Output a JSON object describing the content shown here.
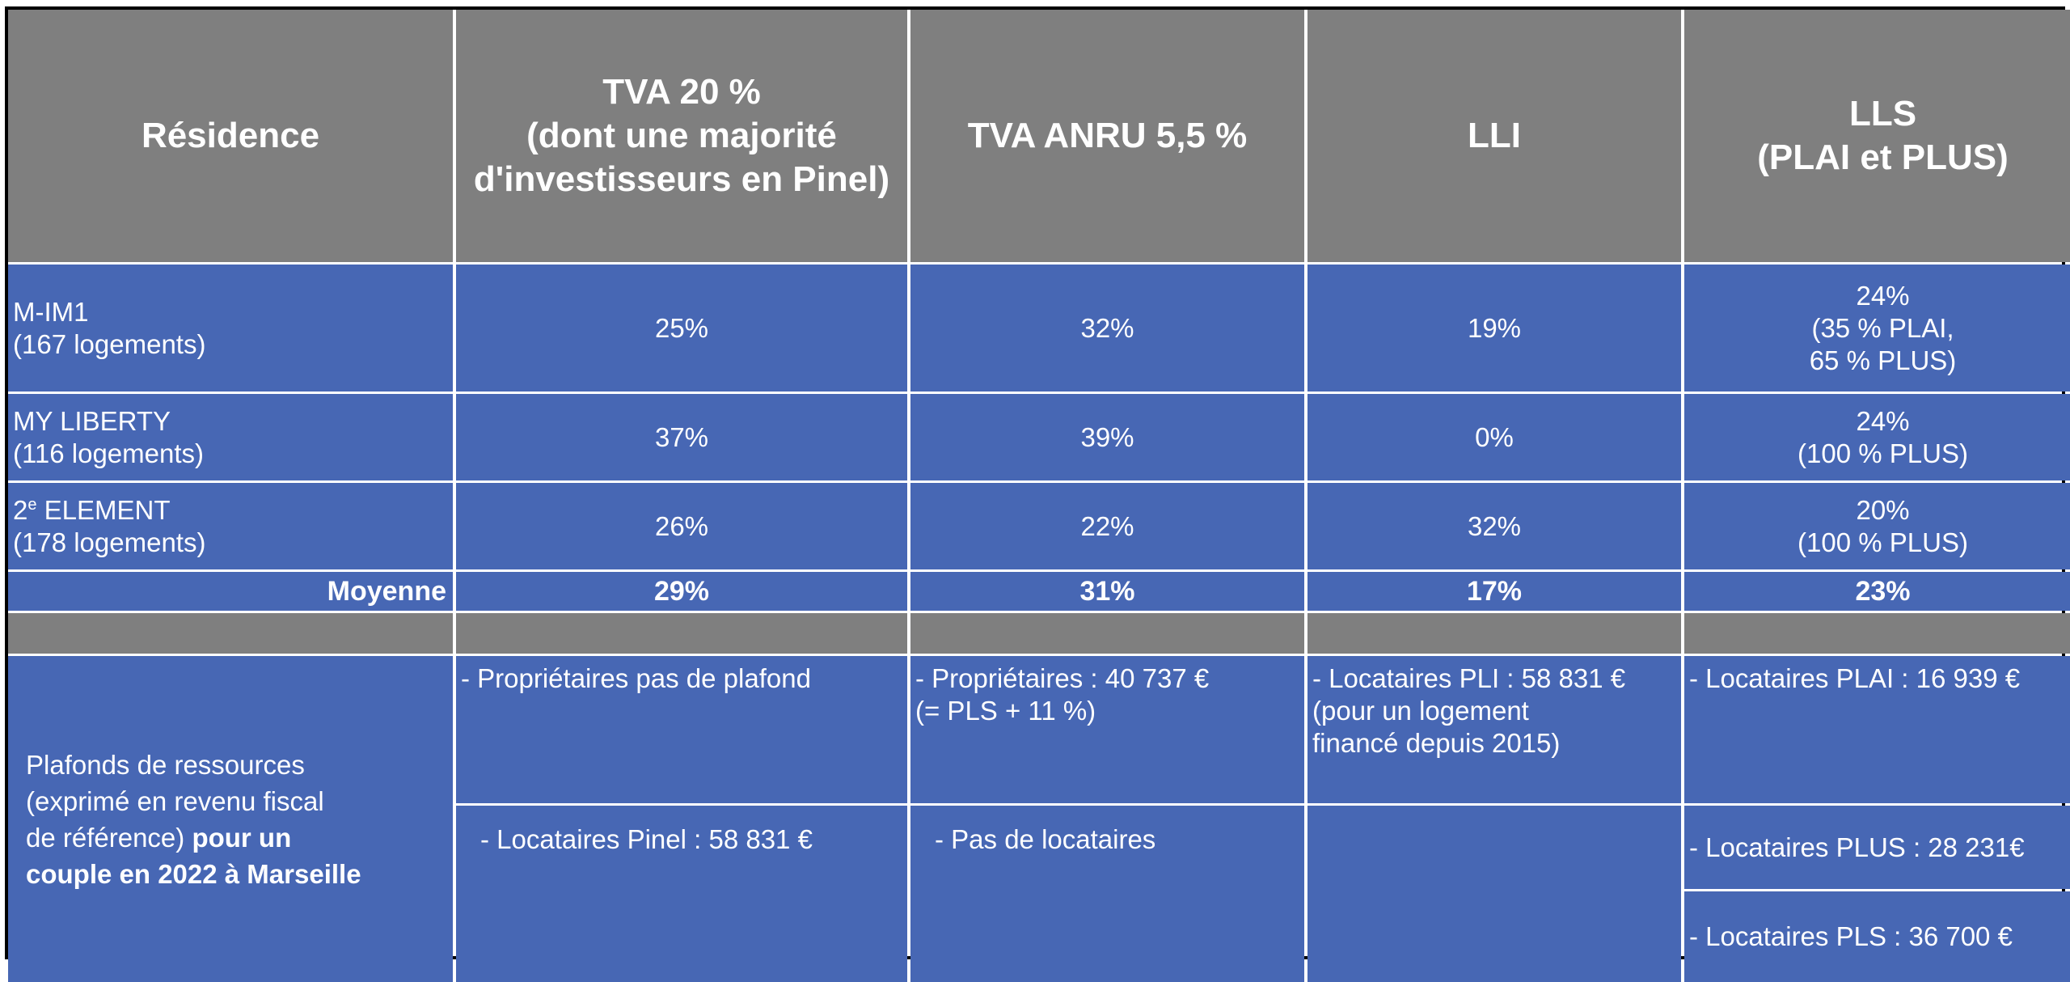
{
  "headers": [
    {
      "lines": [
        "Résidence"
      ]
    },
    {
      "lines": [
        "TVA 20 %",
        "(dont une majorité",
        "d'investisseurs en Pinel)"
      ]
    },
    {
      "lines": [
        "TVA ANRU 5,5 %"
      ]
    },
    {
      "lines": [
        "LLI"
      ]
    },
    {
      "lines": [
        "LLS",
        "(PLAI et PLUS)"
      ]
    }
  ],
  "rows": [
    {
      "name": "M-IM1",
      "count": "(167 logements)",
      "tva20": "25%",
      "anru": "32%",
      "lli": "19%",
      "lls": [
        "24%",
        "(35 % PLAI,",
        "65 % PLUS)"
      ]
    },
    {
      "name": "MY LIBERTY",
      "count": "(116 logements)",
      "tva20": "37%",
      "anru": "39%",
      "lli": "0%",
      "lls": [
        "24%",
        "(100 % PLUS)"
      ]
    },
    {
      "name_prefix": "2",
      "name_sup": "e",
      "name_rest": " ELEMENT",
      "count": "(178 logements)",
      "tva20": "26%",
      "anru": "22%",
      "lli": "32%",
      "lls": [
        "20%",
        "(100 % PLUS)"
      ]
    }
  ],
  "average": {
    "label": "Moyenne",
    "tva20": "29%",
    "anru": "31%",
    "lli": "17%",
    "lls": "23%"
  },
  "plafonds": {
    "label_lines": [
      "Plafonds de ressources",
      "(exprimé en revenu fiscal",
      "de référence)"
    ],
    "label_bold_1": " pour un",
    "label_bold_2": "couple en 2022 à Marseille",
    "tva20_a": "- Propriétaires  pas de plafond",
    "tva20_b": "- Locataires Pinel : 58 831 €",
    "anru_a_lines": [
      "- Propriétaires : 40 737 €",
      "(= PLS + 11 %)"
    ],
    "anru_b": "- Pas de locataires",
    "lli_a_lines": [
      "- Locataires PLI : 58 831 €",
      "(pour un logement",
      "financé depuis 2015)"
    ],
    "lls_a": "- Locataires PLAI : 16 939 €",
    "lls_b": "- Locataires PLUS : 28 231€",
    "lls_c": "- Locataires PLS : 36 700 €"
  },
  "colors": {
    "header_bg": "#7f7f7f",
    "body_bg": "#4767b4",
    "text": "#ffffff",
    "grid": "#ffffff"
  }
}
